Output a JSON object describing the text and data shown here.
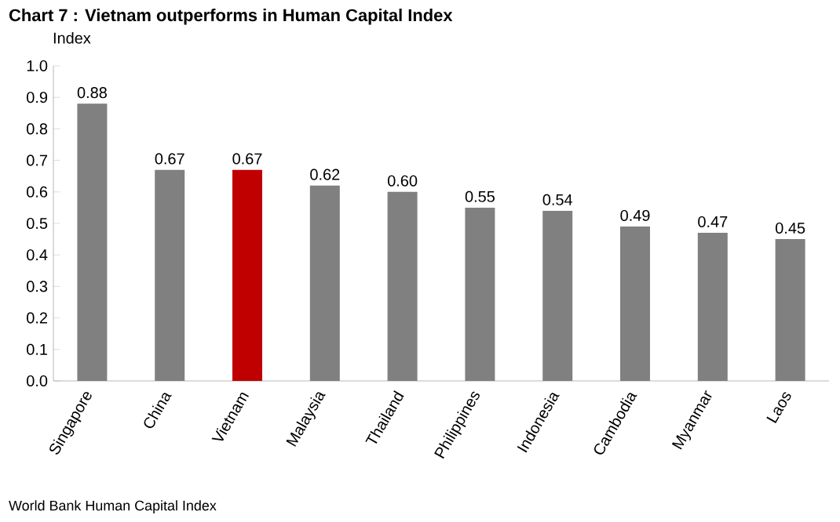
{
  "chart_data": {
    "type": "bar",
    "title": "Chart 7 : Vietnam outperforms in Human Capital Index",
    "ylabel": "Index",
    "categories": [
      "Singapore",
      "China",
      "Vietnam",
      "Malaysia",
      "Thailand",
      "Philippines",
      "Indonesia",
      "Cambodia",
      "Myanmar",
      "Laos"
    ],
    "values": [
      0.88,
      0.67,
      0.67,
      0.62,
      0.6,
      0.55,
      0.54,
      0.49,
      0.47,
      0.45
    ],
    "value_labels": [
      "0.88",
      "0.67",
      "0.67",
      "0.62",
      "0.60",
      "0.55",
      "0.54",
      "0.49",
      "0.47",
      "0.45"
    ],
    "colors": [
      "#808080",
      "#808080",
      "#c00000",
      "#808080",
      "#808080",
      "#808080",
      "#808080",
      "#808080",
      "#808080",
      "#808080"
    ],
    "ylim": [
      0,
      1.0
    ],
    "yticks": [
      {
        "value": 0,
        "label": "0.0"
      },
      {
        "value": 0.1,
        "label": "0.1"
      },
      {
        "value": 0.2,
        "label": "0.2"
      },
      {
        "value": 0.3,
        "label": "0.3"
      },
      {
        "value": 0.4,
        "label": "0.4"
      },
      {
        "value": 0.5,
        "label": "0.5"
      },
      {
        "value": 0.6,
        "label": "0.6"
      },
      {
        "value": 0.7,
        "label": "0.7"
      },
      {
        "value": 0.8,
        "label": "0.8"
      },
      {
        "value": 0.9,
        "label": "0.9"
      },
      {
        "value": 1.0,
        "label": "1.0"
      }
    ],
    "grid": false,
    "annotations": [
      "World Bank Human Capital Index"
    ]
  }
}
